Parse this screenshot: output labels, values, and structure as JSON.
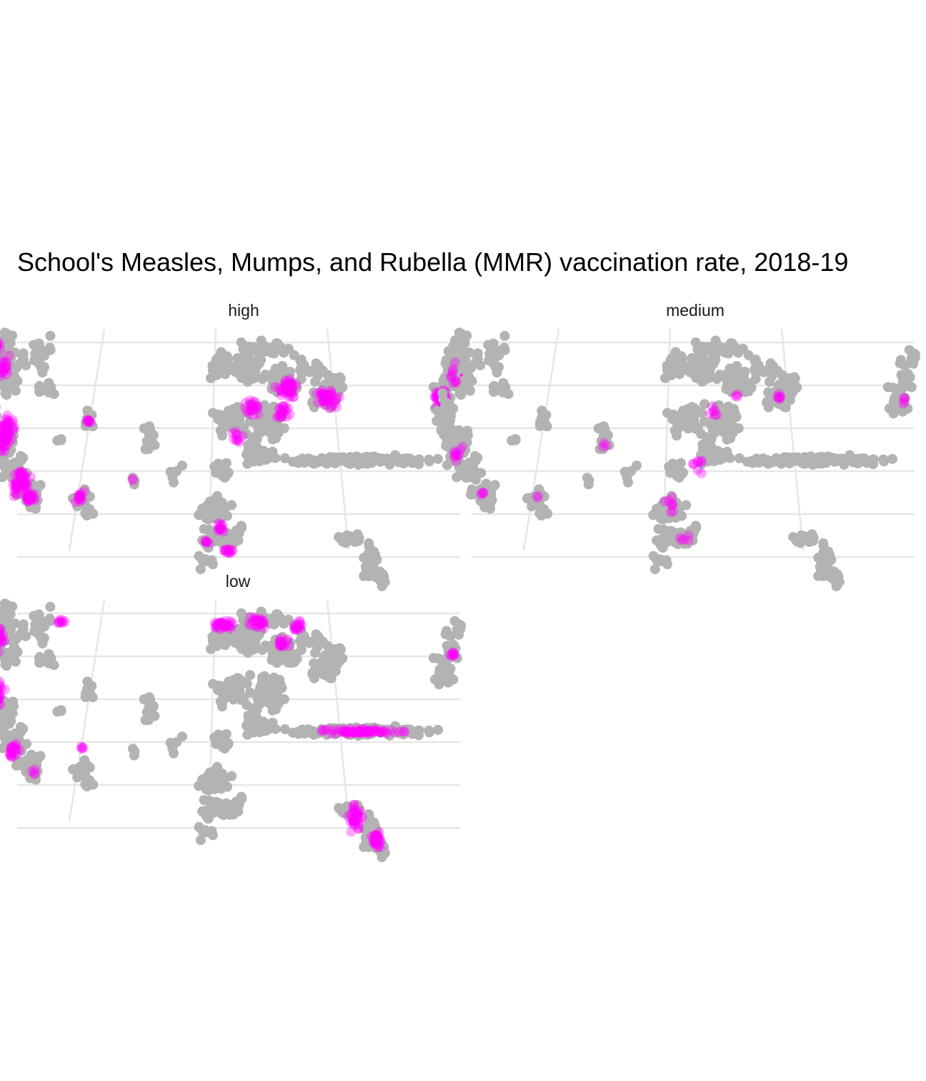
{
  "chart_data": {
    "type": "scatter",
    "title": "School's Measles, Mumps, and Rubella (MMR) vaccination rate, 2018-19",
    "xlabel": "",
    "ylabel": "",
    "grid": true,
    "facets": [
      "high",
      "medium",
      "low"
    ],
    "colors": {
      "background_points": "#b3b3b3",
      "highlight_points": "#ff00ff",
      "grid": "#e6e6e6"
    },
    "series": [
      {
        "facet": "high",
        "highlight_regions": [
          [
            -123.3,
            47.8,
            0.7,
            1.1,
            14
          ],
          [
            -122.0,
            45.8,
            0.9,
            1.5,
            18
          ],
          [
            -120.8,
            39.4,
            1.3,
            2.4,
            60
          ],
          [
            -118.5,
            35.0,
            1.2,
            1.5,
            50
          ],
          [
            -117.4,
            33.5,
            0.7,
            0.6,
            30
          ],
          [
            -112.1,
            33.6,
            0.6,
            0.7,
            15
          ],
          [
            -111.8,
            40.6,
            0.4,
            0.7,
            8
          ],
          [
            -106.5,
            35.2,
            0.2,
            0.2,
            2
          ],
          [
            -97.0,
            30.8,
            0.8,
            0.7,
            12
          ],
          [
            -96.3,
            28.6,
            0.8,
            0.5,
            12
          ],
          [
            -98.5,
            29.4,
            0.5,
            0.4,
            6
          ],
          [
            -95.2,
            39.1,
            0.8,
            1.0,
            10
          ],
          [
            -93.3,
            41.9,
            1.2,
            1.2,
            22
          ],
          [
            -89.4,
            43.6,
            1.6,
            1.4,
            45
          ],
          [
            -90.0,
            41.5,
            1.0,
            1.2,
            20
          ],
          [
            -84.8,
            42.8,
            1.5,
            1.1,
            40
          ],
          [
            -71.8,
            42.6,
            1.1,
            1.4,
            40
          ],
          [
            -69.6,
            45.0,
            0.6,
            0.6,
            8
          ]
        ]
      },
      {
        "facet": "medium",
        "highlight_regions": [
          [
            -122.4,
            45.2,
            0.9,
            2.0,
            10
          ],
          [
            -121.0,
            37.5,
            1.0,
            1.5,
            10
          ],
          [
            -117.6,
            34.0,
            0.4,
            0.4,
            4
          ],
          [
            -111.8,
            33.5,
            0.3,
            0.3,
            2
          ],
          [
            -104.8,
            38.3,
            0.5,
            0.5,
            3
          ],
          [
            -97.5,
            33.0,
            1.0,
            1.2,
            8
          ],
          [
            -96.0,
            29.8,
            0.8,
            0.6,
            5
          ],
          [
            -94.5,
            36.5,
            1.0,
            1.2,
            8
          ],
          [
            -92.5,
            41.5,
            1.0,
            1.0,
            6
          ],
          [
            -90.0,
            43.0,
            0.4,
            0.4,
            3
          ],
          [
            -85.0,
            43.0,
            0.7,
            0.5,
            6
          ],
          [
            -71.0,
            42.5,
            0.5,
            0.6,
            4
          ]
        ]
      },
      {
        "facet": "low",
        "highlight_regions": [
          [
            -122.5,
            45.5,
            0.8,
            1.8,
            18
          ],
          [
            -121.8,
            40.5,
            0.8,
            1.6,
            20
          ],
          [
            -119.4,
            35.2,
            0.8,
            1.0,
            22
          ],
          [
            -117.0,
            33.2,
            0.4,
            0.4,
            4
          ],
          [
            -115.6,
            47.2,
            0.8,
            0.5,
            8
          ],
          [
            -112.0,
            35.5,
            0.3,
            0.3,
            4
          ],
          [
            -96.8,
            46.9,
            1.6,
            0.6,
            30
          ],
          [
            -92.5,
            47.2,
            1.5,
            0.8,
            30
          ],
          [
            -89.8,
            45.2,
            1.0,
            0.6,
            15
          ],
          [
            -88.0,
            46.8,
            1.0,
            0.6,
            15
          ],
          [
            -82.0,
            37.0,
            6.0,
            0.35,
            70
          ],
          [
            -83.0,
            29.0,
            0.8,
            1.5,
            35
          ],
          [
            -81.0,
            27.0,
            0.6,
            1.0,
            30
          ],
          [
            -70.3,
            44.2,
            0.4,
            0.4,
            8
          ]
        ]
      }
    ]
  }
}
